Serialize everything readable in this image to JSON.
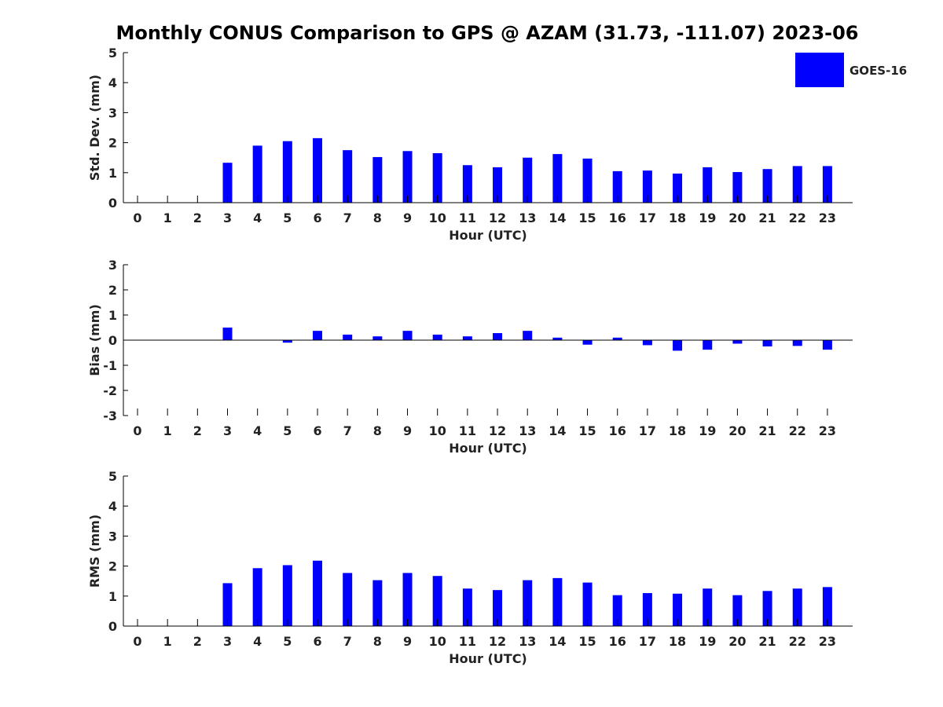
{
  "title": "Monthly CONUS Comparison to GPS @ AZAM (31.73, -111.07) 2023-06",
  "legend": {
    "label": "GOES-16",
    "color": "#0000ff",
    "placement": "top-right"
  },
  "chart_data": [
    {
      "type": "bar",
      "ylabel": "Std. Dev. (mm)",
      "xlabel": "Hour (UTC)",
      "ylim": [
        0,
        5
      ],
      "yticks": [
        0,
        1,
        2,
        3,
        4,
        5
      ],
      "categories": [
        "0",
        "1",
        "2",
        "3",
        "4",
        "5",
        "6",
        "7",
        "8",
        "9",
        "10",
        "11",
        "12",
        "13",
        "14",
        "15",
        "16",
        "17",
        "18",
        "19",
        "20",
        "21",
        "22",
        "23"
      ],
      "series": [
        {
          "name": "GOES-16",
          "color": "#0000ff",
          "values": [
            null,
            null,
            null,
            1.33,
            1.9,
            2.05,
            2.15,
            1.75,
            1.52,
            1.72,
            1.65,
            1.25,
            1.18,
            1.5,
            1.62,
            1.47,
            1.05,
            1.07,
            0.97,
            1.18,
            1.02,
            1.12,
            1.22,
            1.22
          ]
        }
      ],
      "grid": false
    },
    {
      "type": "bar",
      "ylabel": "Bias (mm)",
      "xlabel": "Hour (UTC)",
      "ylim": [
        -3,
        3
      ],
      "yticks": [
        -3,
        -2,
        -1,
        0,
        1,
        2,
        3
      ],
      "categories": [
        "0",
        "1",
        "2",
        "3",
        "4",
        "5",
        "6",
        "7",
        "8",
        "9",
        "10",
        "11",
        "12",
        "13",
        "14",
        "15",
        "16",
        "17",
        "18",
        "19",
        "20",
        "21",
        "22",
        "23"
      ],
      "series": [
        {
          "name": "GOES-16",
          "color": "#0000ff",
          "values": [
            null,
            null,
            null,
            0.5,
            0.0,
            -0.1,
            0.37,
            0.22,
            0.15,
            0.37,
            0.22,
            0.15,
            0.28,
            0.37,
            0.1,
            -0.18,
            0.1,
            -0.2,
            -0.42,
            -0.38,
            -0.14,
            -0.25,
            -0.23,
            -0.38
          ]
        }
      ],
      "grid": false
    },
    {
      "type": "bar",
      "ylabel": "RMS (mm)",
      "xlabel": "Hour (UTC)",
      "ylim": [
        0,
        5
      ],
      "yticks": [
        0,
        1,
        2,
        3,
        4,
        5
      ],
      "categories": [
        "0",
        "1",
        "2",
        "3",
        "4",
        "5",
        "6",
        "7",
        "8",
        "9",
        "10",
        "11",
        "12",
        "13",
        "14",
        "15",
        "16",
        "17",
        "18",
        "19",
        "20",
        "21",
        "22",
        "23"
      ],
      "series": [
        {
          "name": "GOES-16",
          "color": "#0000ff",
          "values": [
            null,
            null,
            null,
            1.43,
            1.93,
            2.03,
            2.18,
            1.77,
            1.53,
            1.77,
            1.67,
            1.25,
            1.2,
            1.53,
            1.6,
            1.45,
            1.03,
            1.1,
            1.08,
            1.25,
            1.03,
            1.17,
            1.25,
            1.3
          ]
        }
      ],
      "grid": false
    }
  ]
}
